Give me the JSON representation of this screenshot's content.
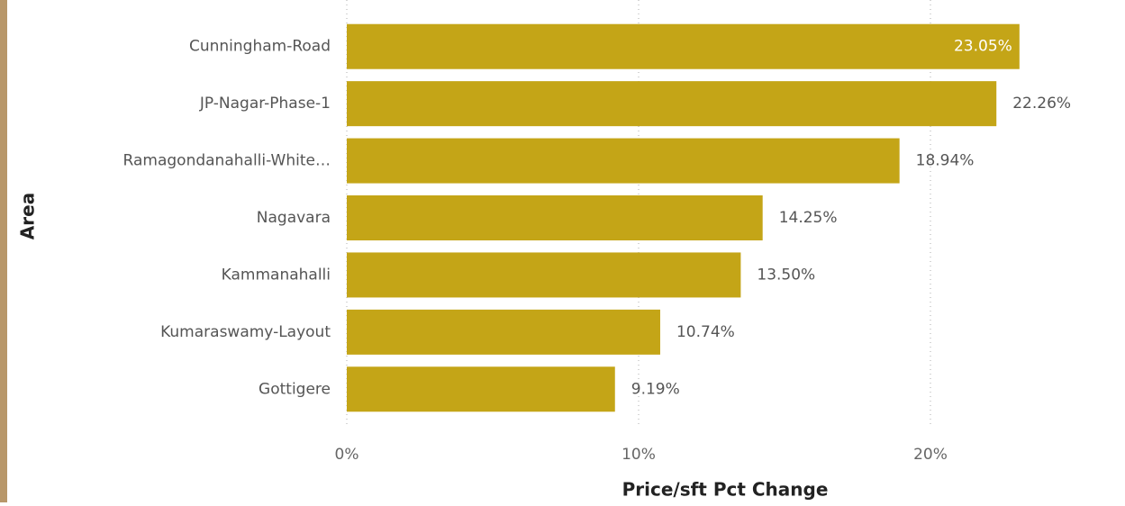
{
  "chart_data": {
    "type": "bar",
    "orientation": "horizontal",
    "y_axis_label": "Area",
    "x_axis_label": "Price/sft Pct Change",
    "categories": [
      "Cunningham-Road",
      "JP-Nagar-Phase-1",
      "Ramagondanahalli-White…",
      "Nagavara",
      "Kammanahalli",
      "Kumaraswamy-Layout",
      "Gottigere"
    ],
    "values": [
      23.05,
      22.26,
      18.94,
      14.25,
      13.5,
      10.74,
      9.19
    ],
    "value_labels": [
      "23.05%",
      "22.26%",
      "18.94%",
      "14.25%",
      "13.50%",
      "10.74%",
      "9.19%"
    ],
    "color": "#c4a517",
    "xlim": [
      0,
      26
    ],
    "xticks": [
      {
        "value": 0,
        "label": "0%"
      },
      {
        "value": 10,
        "label": "10%"
      },
      {
        "value": 20,
        "label": "20%"
      }
    ],
    "grid": true
  }
}
